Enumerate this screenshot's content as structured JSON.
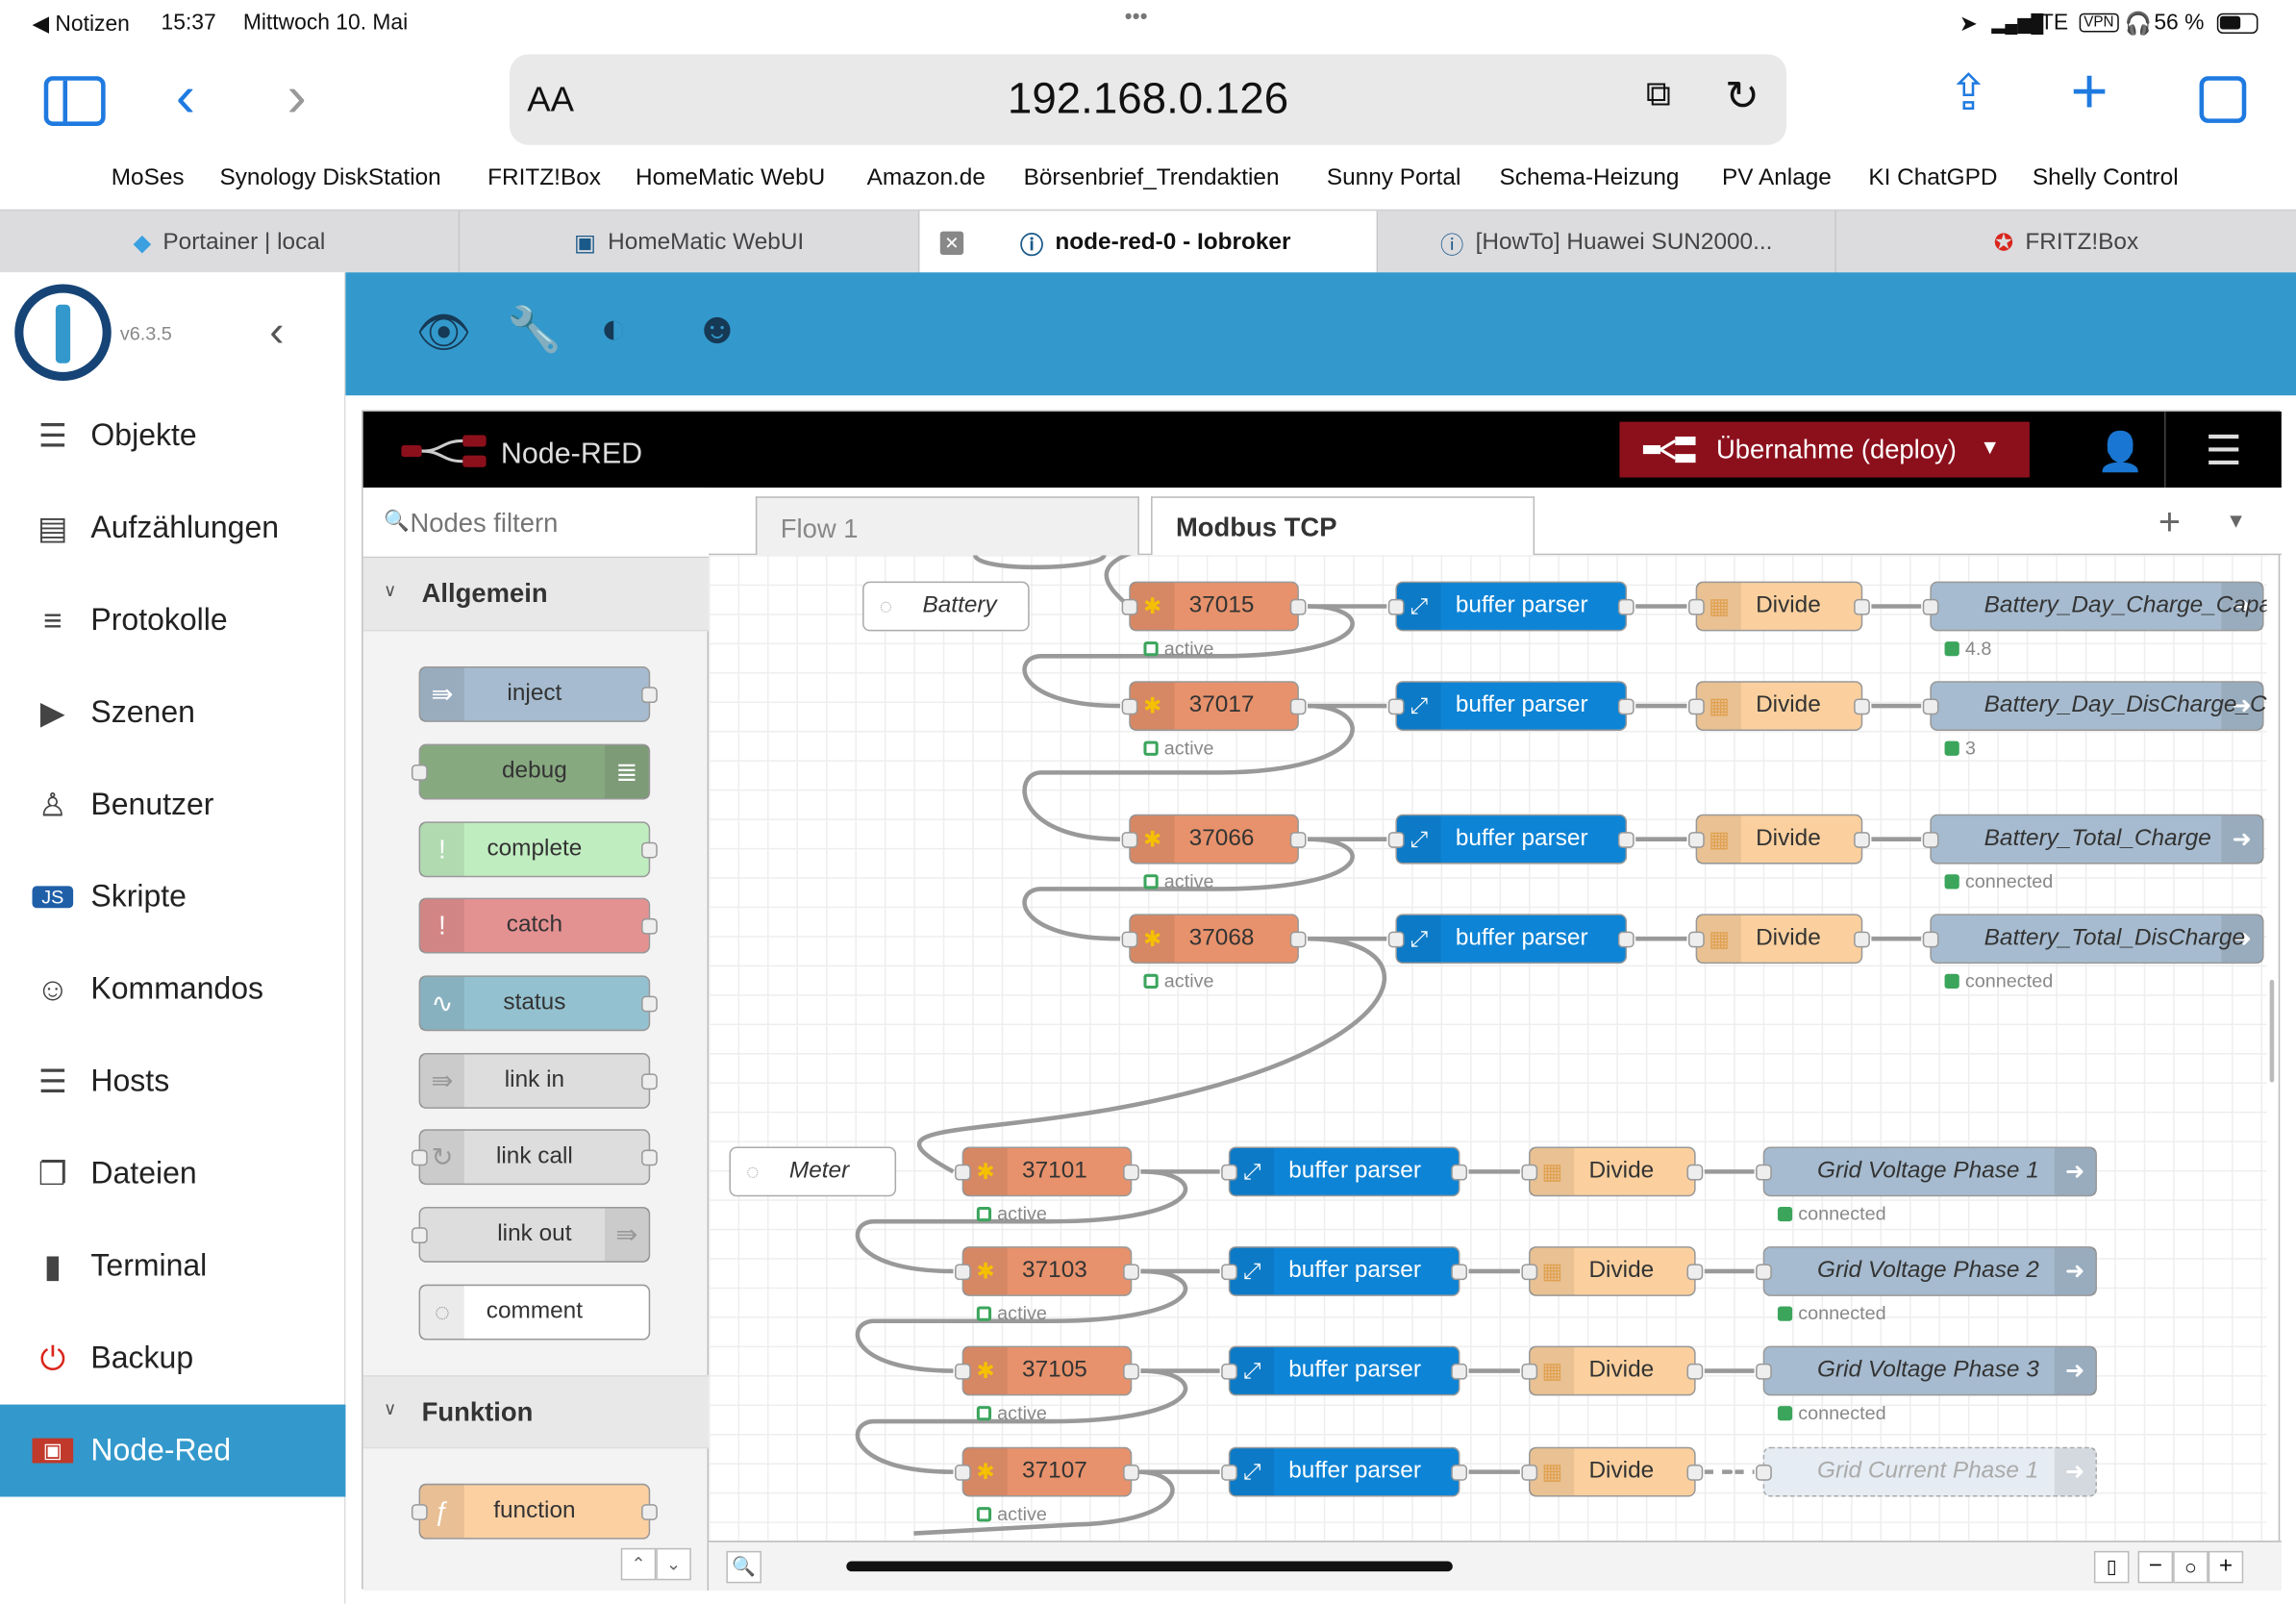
{
  "status_bar": {
    "back_app": "◀ Notizen",
    "time": "15:37",
    "date": "Mittwoch 10. Mai",
    "dots": "•••",
    "network": "LTE",
    "vpn": "VPN",
    "battery": "56 %"
  },
  "browser": {
    "aa": "AA",
    "url": "192.168.0.126",
    "bookmarks": [
      "MoSes",
      "Synology DiskStation",
      "FRITZ!Box",
      "HomeMatic WebU",
      "Amazon.de",
      "Börsenbrief_Trendaktien",
      "Sunny Portal",
      "Schema-Heizung",
      "PV Anlage",
      "KI ChatGPD",
      "Shelly Control"
    ],
    "tabs": [
      "Portainer | local",
      "HomeMatic WebUI",
      "node-red-0 - Iobroker",
      "[HowTo] Huawei SUN2000...",
      "FRITZ!Box"
    ]
  },
  "iobroker": {
    "version": "v6.3.5",
    "menu": [
      {
        "label": "Objekte",
        "icon": "list-icon"
      },
      {
        "label": "Aufzählungen",
        "icon": "enum-icon"
      },
      {
        "label": "Protokolle",
        "icon": "log-icon"
      },
      {
        "label": "Szenen",
        "icon": "scene-icon"
      },
      {
        "label": "Benutzer",
        "icon": "user-icon"
      },
      {
        "label": "Skripte",
        "icon": "js-icon"
      },
      {
        "label": "Kommandos",
        "icon": "command-icon"
      },
      {
        "label": "Hosts",
        "icon": "host-icon"
      },
      {
        "label": "Dateien",
        "icon": "files-icon"
      },
      {
        "label": "Terminal",
        "icon": "terminal-icon"
      },
      {
        "label": "Backup",
        "icon": "backup-icon"
      },
      {
        "label": "Node-Red",
        "icon": "nodered-icon"
      }
    ]
  },
  "nodered": {
    "title": "Node-RED",
    "deploy": "Übernahme (deploy)",
    "filter_placeholder": "Nodes filtern",
    "cat_general": "Allgemein",
    "cat_function": "Funktion",
    "palette": [
      "inject",
      "debug",
      "complete",
      "catch",
      "status",
      "link in",
      "link call",
      "link out",
      "comment",
      "function"
    ],
    "tabs": [
      "Flow 1",
      "Modbus TCP"
    ],
    "comments": [
      "Battery",
      "Meter"
    ],
    "rows": [
      {
        "reg": "37015",
        "reg_status": "active",
        "parser": "buffer parser",
        "div": "Divide",
        "out": "Battery_Day_Charge_Capac",
        "out_status": "4.8"
      },
      {
        "reg": "37017",
        "reg_status": "active",
        "parser": "buffer parser",
        "div": "Divide",
        "out": "Battery_Day_DisCharge_Ca",
        "out_status": "3"
      },
      {
        "reg": "37066",
        "reg_status": "active",
        "parser": "buffer parser",
        "div": "Divide",
        "out": "Battery_Total_Charge",
        "out_status": "connected"
      },
      {
        "reg": "37068",
        "reg_status": "active",
        "parser": "buffer parser",
        "div": "Divide",
        "out": "Battery_Total_DisCharge",
        "out_status": "connected"
      },
      {
        "reg": "37101",
        "reg_status": "active",
        "parser": "buffer parser",
        "div": "Divide",
        "out": "Grid Voltage Phase 1",
        "out_status": "connected"
      },
      {
        "reg": "37103",
        "reg_status": "active",
        "parser": "buffer parser",
        "div": "Divide",
        "out": "Grid Voltage Phase 2",
        "out_status": "connected"
      },
      {
        "reg": "37105",
        "reg_status": "active",
        "parser": "buffer parser",
        "div": "Divide",
        "out": "Grid Voltage Phase 3",
        "out_status": "connected"
      },
      {
        "reg": "37107",
        "reg_status": "active",
        "parser": "buffer parser",
        "div": "Divide",
        "out": "Grid Current Phase 1",
        "out_status": ""
      }
    ]
  },
  "colors": {
    "accent": "#3399cc",
    "deploy": "#8c101c",
    "modbus": "#e7926c",
    "parser": "#0d84d6",
    "divide": "#fbd09e",
    "iob": "#a6bbcf",
    "status_green": "#3ba55c"
  }
}
